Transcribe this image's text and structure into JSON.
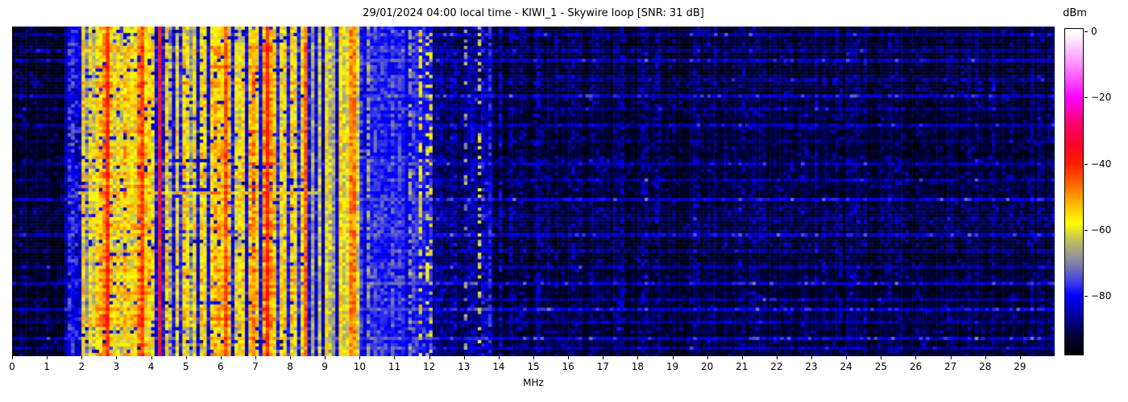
{
  "header": {
    "title": "29/01/2024 04:00 local time - KIWI_1 - Skywire loop [SNR: 31 dB]",
    "date": "29/01/2024",
    "time": "04:00 local time",
    "station": "KIWI_1",
    "antenna": "Skywire loop",
    "snr": "31 dB"
  },
  "chart_data": {
    "type": "heatmap",
    "title": "29/01/2024 04:00 local time - KIWI_1 - Skywire loop [SNR: 31 dB]",
    "xlabel": "MHz",
    "x_range_mhz": [
      0,
      30
    ],
    "x_ticks": [
      0,
      1,
      2,
      3,
      4,
      5,
      6,
      7,
      8,
      9,
      10,
      11,
      12,
      13,
      14,
      15,
      16,
      17,
      18,
      19,
      20,
      21,
      22,
      23,
      24,
      25,
      26,
      27,
      28,
      29
    ],
    "y_ticks": [],
    "colorbar": {
      "label": "dBm",
      "tick_values": [
        0,
        -20,
        -40,
        -60,
        -80
      ],
      "tick_labels": [
        "0",
        "−20",
        "−40",
        "−60",
        "−80"
      ],
      "range_dbm": [
        1,
        -98
      ]
    },
    "colormap_stops": [
      [
        -98,
        "#000000"
      ],
      [
        -92,
        "#00003c"
      ],
      [
        -86,
        "#0000a0"
      ],
      [
        -80,
        "#0000ff"
      ],
      [
        -76,
        "#3c3ce6"
      ],
      [
        -72,
        "#6e6eb4"
      ],
      [
        -68,
        "#969696"
      ],
      [
        -63,
        "#c3c35a"
      ],
      [
        -58,
        "#ffff00"
      ],
      [
        -52,
        "#ffb400"
      ],
      [
        -46,
        "#ff6400"
      ],
      [
        -40,
        "#ff1e00"
      ],
      [
        -34,
        "#ff0028"
      ],
      [
        -27,
        "#ff0078"
      ],
      [
        -20,
        "#ff00ff"
      ],
      [
        -10,
        "#ff8cff"
      ],
      [
        0,
        "#ffffff"
      ]
    ],
    "grid": {
      "cols": 300,
      "rows": 102
    },
    "noise_segments": [
      {
        "from": 0.0,
        "to": 1.55,
        "base": -93.5,
        "var": 5,
        "speckle_p": 0.06,
        "speckle_db": 8,
        "act": 0.8
      },
      {
        "from": 1.55,
        "to": 1.95,
        "base": -88.0,
        "var": 6,
        "act": 0.5
      },
      {
        "from": 1.95,
        "to": 8.55,
        "base": -81.0,
        "var": 7,
        "active": true,
        "act": 0.2
      },
      {
        "from": 8.55,
        "to": 10.0,
        "base": -82.0,
        "var": 7,
        "act": 0.3
      },
      {
        "from": 10.0,
        "to": 12.1,
        "base": -80.0,
        "var": 4,
        "speckle_p": 0.1,
        "speckle_db": 5,
        "act": 0.45
      },
      {
        "from": 12.1,
        "to": 13.9,
        "base": -90.0,
        "var": 5,
        "speckle_p": 0.08,
        "speckle_db": 7,
        "act": 1.0
      },
      {
        "from": 13.9,
        "to": 30.01,
        "base": -92.5,
        "var": 5,
        "speckle_p": 0.08,
        "speckle_db": 7,
        "act": 1.0
      }
    ],
    "signals_fields": [
      "mhz",
      "dbm",
      "row_prob",
      "width_mhz"
    ],
    "signals": [
      [
        1.62,
        -78,
        0.9
      ],
      [
        1.75,
        -77,
        0.9
      ],
      [
        1.86,
        -80,
        0.8
      ],
      [
        2.08,
        -58
      ],
      [
        2.18,
        -70
      ],
      [
        2.3,
        -60
      ],
      [
        2.4,
        -64
      ],
      [
        2.48,
        -57
      ],
      [
        2.56,
        -55,
        1,
        0.2
      ],
      [
        2.64,
        -50
      ],
      [
        2.75,
        -41
      ],
      [
        2.86,
        -56
      ],
      [
        2.95,
        -62
      ],
      [
        3.02,
        -57
      ],
      [
        3.12,
        -63
      ],
      [
        3.2,
        -55
      ],
      [
        3.32,
        -58
      ],
      [
        3.42,
        -60
      ],
      [
        3.55,
        -58
      ],
      [
        3.65,
        -50
      ],
      [
        3.77,
        -44
      ],
      [
        3.86,
        -56
      ],
      [
        3.95,
        -57
      ],
      [
        4.05,
        -59
      ],
      [
        4.2,
        -52
      ],
      [
        4.29,
        -39
      ],
      [
        4.45,
        -58
      ],
      [
        4.6,
        -68
      ],
      [
        4.75,
        -59
      ],
      [
        4.9,
        -57
      ],
      [
        5.05,
        -60
      ],
      [
        5.18,
        -70
      ],
      [
        5.3,
        -60
      ],
      [
        5.45,
        -58
      ],
      [
        5.6,
        -59
      ],
      [
        5.75,
        -56
      ],
      [
        5.9,
        -54,
        1,
        0.2
      ],
      [
        6.05,
        -56
      ],
      [
        6.16,
        -45
      ],
      [
        6.3,
        -56
      ],
      [
        6.42,
        -62
      ],
      [
        6.55,
        -60
      ],
      [
        6.68,
        -58
      ],
      [
        6.8,
        -55
      ],
      [
        6.95,
        -50
      ],
      [
        7.1,
        -56
      ],
      [
        7.2,
        -51
      ],
      [
        7.33,
        -41
      ],
      [
        7.45,
        -52
      ],
      [
        7.58,
        -56
      ],
      [
        7.7,
        -59
      ],
      [
        7.85,
        -58
      ],
      [
        8.0,
        -56
      ],
      [
        8.12,
        -60
      ],
      [
        8.3,
        -59
      ],
      [
        8.43,
        -47
      ],
      [
        8.7,
        -67
      ],
      [
        8.85,
        -63
      ],
      [
        9.0,
        -59
      ],
      [
        9.15,
        -64
      ],
      [
        9.28,
        -67
      ],
      [
        9.44,
        -56
      ],
      [
        9.57,
        -61
      ],
      [
        9.68,
        -60
      ],
      [
        9.79,
        -48,
        1,
        0.2
      ],
      [
        9.9,
        -62
      ],
      [
        10.0,
        -55,
        0.12
      ],
      [
        10.05,
        -76,
        0.9
      ],
      [
        10.25,
        -68,
        0.7
      ],
      [
        10.42,
        -76,
        0.9
      ],
      [
        10.62,
        -78,
        0.8
      ],
      [
        10.9,
        -75,
        0.9
      ],
      [
        11.14,
        -46,
        0.22
      ],
      [
        11.2,
        -76,
        0.8
      ],
      [
        11.45,
        -68,
        0.6
      ],
      [
        11.55,
        -76,
        0.8
      ],
      [
        11.76,
        -58,
        0.5
      ],
      [
        11.9,
        -63,
        0.4
      ],
      [
        12.0,
        -60,
        0.35,
        0.2
      ],
      [
        12.35,
        -86,
        0.7
      ],
      [
        12.72,
        -84,
        0.6
      ],
      [
        13.07,
        -68,
        0.22
      ],
      [
        13.25,
        -84,
        0.5
      ],
      [
        13.42,
        -60,
        0.38
      ],
      [
        13.55,
        -82,
        0.7
      ],
      [
        13.75,
        -80,
        0.95
      ],
      [
        14.05,
        -84,
        0.6
      ],
      [
        14.35,
        -86,
        0.6
      ],
      [
        14.7,
        -87,
        0.7
      ],
      [
        15.13,
        -85,
        0.8
      ],
      [
        15.6,
        -88,
        0.6
      ],
      [
        16.15,
        -87,
        0.7
      ],
      [
        16.9,
        -88,
        0.5
      ],
      [
        17.55,
        -86,
        0.7
      ],
      [
        18.15,
        -87,
        0.6
      ],
      [
        18.5,
        -86,
        0.6
      ],
      [
        19.75,
        -87,
        0.6
      ],
      [
        21.05,
        -88,
        0.5
      ],
      [
        23.8,
        -88,
        0.5
      ],
      [
        26.0,
        -89,
        0.5
      ],
      [
        29.3,
        -88,
        0.6
      ]
    ],
    "broadband_event": {
      "t": 0.5,
      "from_mhz": 1.9,
      "to_mhz": 8.75,
      "dbm": -64
    },
    "activity_rows_fields": [
      "t",
      "boost_db"
    ],
    "activity_rows": [
      [
        0.02,
        6
      ],
      [
        0.065,
        4
      ],
      [
        0.1,
        8
      ],
      [
        0.155,
        5
      ],
      [
        0.21,
        11
      ],
      [
        0.25,
        5
      ],
      [
        0.3,
        9
      ],
      [
        0.345,
        4
      ],
      [
        0.42,
        7
      ],
      [
        0.47,
        6
      ],
      [
        0.52,
        10
      ],
      [
        0.58,
        5
      ],
      [
        0.63,
        11
      ],
      [
        0.68,
        6
      ],
      [
        0.73,
        7
      ],
      [
        0.78,
        9
      ],
      [
        0.83,
        6
      ],
      [
        0.865,
        12
      ],
      [
        0.9,
        7
      ],
      [
        0.95,
        9
      ],
      [
        0.985,
        6
      ]
    ]
  }
}
